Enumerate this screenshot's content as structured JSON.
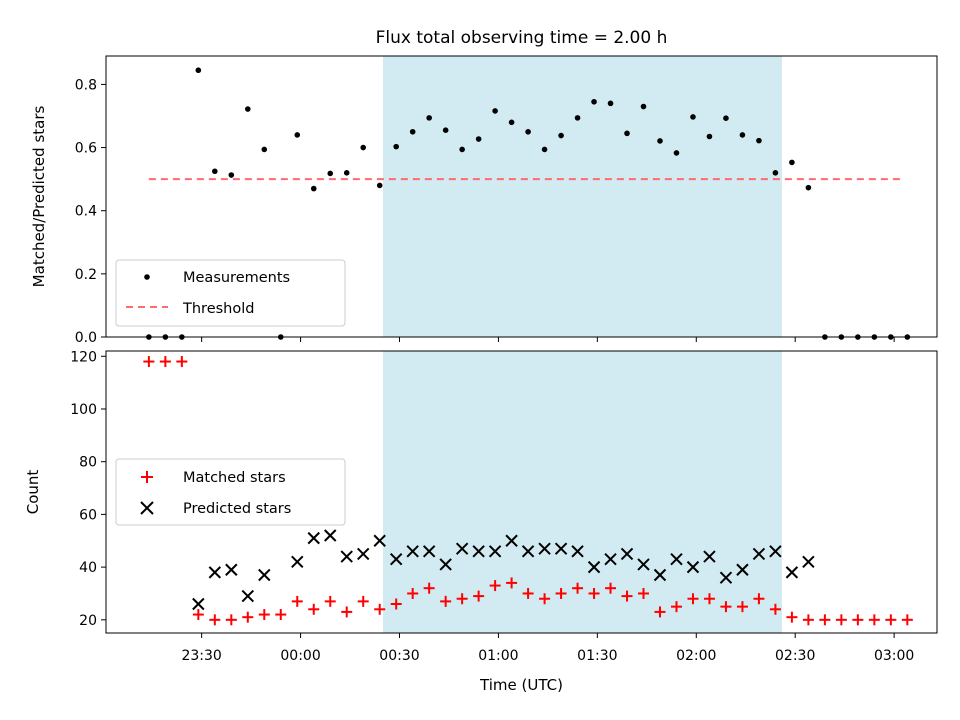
{
  "chart_data": [
    {
      "type": "scatter",
      "title": "Flux total observing time = 2.00 h",
      "xlabel": "",
      "ylabel": "Matched/Predicted stars",
      "ylim": [
        0,
        0.89
      ],
      "yticks": [
        "0.0",
        "0.2",
        "0.4",
        "0.6",
        "0.8"
      ],
      "shaded_span": {
        "start": "00:25",
        "end": "02:26",
        "color": "#add8e6"
      },
      "legend": {
        "position": "lower-left",
        "entries": [
          "Measurements",
          "Threshold"
        ]
      },
      "threshold": {
        "name": "Threshold",
        "y": 0.5,
        "x_start": "23:14",
        "x_end": "03:02",
        "color": "#ff6b6b",
        "style": "dashed"
      },
      "series": [
        {
          "name": "Measurements",
          "marker": "dot",
          "color": "#000000",
          "x": [
            "23:14",
            "23:19",
            "23:24",
            "23:29",
            "23:34",
            "23:39",
            "23:44",
            "23:49",
            "23:54",
            "23:59",
            "00:04",
            "00:09",
            "00:14",
            "00:19",
            "00:24",
            "00:29",
            "00:34",
            "00:39",
            "00:44",
            "00:49",
            "00:54",
            "00:59",
            "01:04",
            "01:09",
            "01:14",
            "01:19",
            "01:24",
            "01:29",
            "01:34",
            "01:39",
            "01:44",
            "01:49",
            "01:54",
            "01:59",
            "02:04",
            "02:09",
            "02:14",
            "02:19",
            "02:24",
            "02:29",
            "02:34",
            "02:39",
            "02:44",
            "02:49",
            "02:54",
            "02:59",
            "03:04"
          ],
          "y": [
            0.0,
            0.0,
            0.0,
            0.845,
            0.525,
            0.513,
            0.722,
            0.594,
            0.0,
            0.64,
            0.47,
            0.518,
            0.52,
            0.6,
            0.48,
            0.603,
            0.65,
            0.694,
            0.655,
            0.594,
            0.627,
            0.716,
            0.68,
            0.65,
            0.594,
            0.638,
            0.694,
            0.745,
            0.74,
            0.645,
            0.73,
            0.621,
            0.583,
            0.697,
            0.635,
            0.693,
            0.64,
            0.622,
            0.52,
            0.553,
            0.473,
            0.0,
            0.0,
            0.0,
            0.0,
            0.0,
            0.0
          ]
        }
      ]
    },
    {
      "type": "scatter",
      "title": "",
      "xlabel": "Time (UTC)",
      "ylabel": "Count",
      "ylim": [
        15,
        122
      ],
      "yticks": [
        "20",
        "40",
        "60",
        "80",
        "100",
        "120"
      ],
      "xticks": [
        "23:30",
        "00:00",
        "00:30",
        "01:00",
        "01:30",
        "02:00",
        "02:30",
        "03:00"
      ],
      "shaded_span": {
        "start": "00:25",
        "end": "02:26",
        "color": "#add8e6"
      },
      "legend": {
        "position": "center-left",
        "entries": [
          "Matched stars",
          "Predicted stars"
        ]
      },
      "series": [
        {
          "name": "Matched stars",
          "marker": "plus",
          "color": "#ff0000",
          "x": [
            "23:14",
            "23:19",
            "23:24",
            "23:29",
            "23:34",
            "23:39",
            "23:44",
            "23:49",
            "23:54",
            "23:59",
            "00:04",
            "00:09",
            "00:14",
            "00:19",
            "00:24",
            "00:29",
            "00:34",
            "00:39",
            "00:44",
            "00:49",
            "00:54",
            "00:59",
            "01:04",
            "01:09",
            "01:14",
            "01:19",
            "01:24",
            "01:29",
            "01:34",
            "01:39",
            "01:44",
            "01:49",
            "01:54",
            "01:59",
            "02:04",
            "02:09",
            "02:14",
            "02:19",
            "02:24",
            "02:29",
            "02:34",
            "02:39",
            "02:44",
            "02:49",
            "02:54",
            "02:59",
            "03:04"
          ],
          "y": [
            118,
            118,
            118,
            22,
            20,
            20,
            21,
            22,
            22,
            27,
            24,
            27,
            23,
            27,
            24,
            26,
            30,
            32,
            27,
            28,
            29,
            33,
            34,
            30,
            28,
            30,
            32,
            30,
            32,
            29,
            30,
            23,
            25,
            28,
            28,
            25,
            25,
            28,
            24,
            21,
            20,
            20,
            20,
            20,
            20,
            20,
            20
          ]
        },
        {
          "name": "Predicted stars",
          "marker": "x",
          "color": "#000000",
          "x": [
            "23:29",
            "23:34",
            "23:39",
            "23:44",
            "23:49",
            "23:59",
            "00:04",
            "00:09",
            "00:14",
            "00:19",
            "00:24",
            "00:29",
            "00:34",
            "00:39",
            "00:44",
            "00:49",
            "00:54",
            "00:59",
            "01:04",
            "01:09",
            "01:14",
            "01:19",
            "01:24",
            "01:29",
            "01:34",
            "01:39",
            "01:44",
            "01:49",
            "01:54",
            "01:59",
            "02:04",
            "02:09",
            "02:14",
            "02:19",
            "02:24",
            "02:29",
            "02:34"
          ],
          "y": [
            26,
            38,
            39,
            29,
            37,
            42,
            51,
            52,
            44,
            45,
            50,
            43,
            46,
            46,
            41,
            47,
            46,
            46,
            50,
            46,
            47,
            47,
            46,
            40,
            43,
            45,
            41,
            37,
            43,
            40,
            44,
            36,
            39,
            45,
            46,
            38,
            42
          ]
        }
      ]
    }
  ]
}
